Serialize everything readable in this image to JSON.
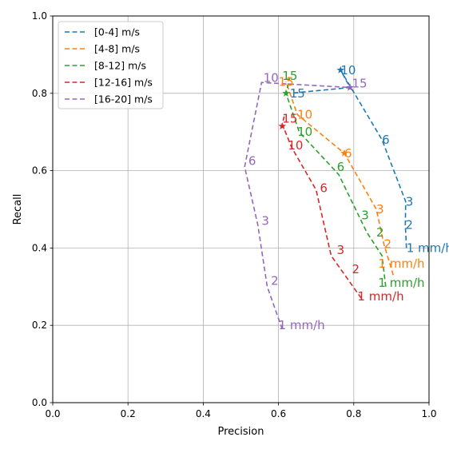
{
  "chart_data": {
    "type": "line",
    "xlabel": "Precision",
    "ylabel": "Recall",
    "xlim": [
      0.0,
      1.0
    ],
    "ylim": [
      0.0,
      1.0
    ],
    "xticks": [
      "0.0",
      "0.2",
      "0.4",
      "0.6",
      "0.8",
      "1.0"
    ],
    "yticks": [
      "0.0",
      "0.2",
      "0.4",
      "0.6",
      "0.8",
      "1.0"
    ],
    "grid": true,
    "legend_position": "top-left",
    "series": [
      {
        "name": "[0-4] m/s",
        "color": "#1f77b4",
        "x": [
          0.94,
          0.937,
          0.938,
          0.875,
          0.765,
          0.79,
          0.63
        ],
        "y": [
          0.4,
          0.46,
          0.52,
          0.68,
          0.86,
          0.815,
          0.8
        ],
        "labels": [
          {
            "text": "1 mm/h",
            "x": 0.94,
            "y": 0.4
          },
          {
            "text": "2",
            "x": 0.937,
            "y": 0.46
          },
          {
            "text": "3",
            "x": 0.938,
            "y": 0.52
          },
          {
            "text": "6",
            "x": 0.875,
            "y": 0.68
          },
          {
            "text": "10",
            "x": 0.765,
            "y": 0.86
          },
          {
            "text": "15",
            "x": 0.63,
            "y": 0.8
          }
        ],
        "markers": [
          {
            "x": 0.765,
            "y": 0.86
          },
          {
            "x": 0.79,
            "y": 0.815
          }
        ]
      },
      {
        "name": "[4-8] m/s",
        "color": "#ff7f0e",
        "x": [
          0.905,
          0.88,
          0.86,
          0.775,
          0.65,
          0.62
        ],
        "y": [
          0.33,
          0.41,
          0.5,
          0.645,
          0.745,
          0.83
        ],
        "labels": [
          {
            "text": "1 mm/h",
            "x": 0.865,
            "y": 0.36
          },
          {
            "text": "2",
            "x": 0.88,
            "y": 0.41
          },
          {
            "text": "3",
            "x": 0.86,
            "y": 0.5
          },
          {
            "text": "6",
            "x": 0.775,
            "y": 0.645
          },
          {
            "text": "10",
            "x": 0.65,
            "y": 0.745
          },
          {
            "text": "15",
            "x": 0.6,
            "y": 0.83
          }
        ],
        "markers": [
          {
            "x": 0.775,
            "y": 0.645
          }
        ]
      },
      {
        "name": "[8-12] m/s",
        "color": "#2ca02c",
        "x": [
          0.885,
          0.875,
          0.835,
          0.76,
          0.655,
          0.62,
          0.63
        ],
        "y": [
          0.3,
          0.38,
          0.44,
          0.59,
          0.7,
          0.8,
          0.84
        ],
        "labels": [
          {
            "text": "1 mm/h",
            "x": 0.865,
            "y": 0.31
          },
          {
            "text": "2",
            "x": 0.86,
            "y": 0.44
          },
          {
            "text": "3",
            "x": 0.82,
            "y": 0.485
          },
          {
            "text": "6",
            "x": 0.755,
            "y": 0.61
          },
          {
            "text": "10",
            "x": 0.65,
            "y": 0.7
          },
          {
            "text": "15",
            "x": 0.61,
            "y": 0.845
          }
        ],
        "markers": [
          {
            "x": 0.62,
            "y": 0.8
          }
        ]
      },
      {
        "name": "[12-16] m/s",
        "color": "#d62728",
        "x": [
          0.82,
          0.74,
          0.7,
          0.635,
          0.61,
          0.615
        ],
        "y": [
          0.27,
          0.38,
          0.55,
          0.66,
          0.72,
          0.74
        ],
        "labels": [
          {
            "text": "1 mm/h",
            "x": 0.81,
            "y": 0.275
          },
          {
            "text": "2",
            "x": 0.795,
            "y": 0.345
          },
          {
            "text": "3",
            "x": 0.755,
            "y": 0.395
          },
          {
            "text": "6",
            "x": 0.71,
            "y": 0.555
          },
          {
            "text": "10",
            "x": 0.625,
            "y": 0.665
          },
          {
            "text": "15",
            "x": 0.61,
            "y": 0.735
          }
        ],
        "markers": [
          {
            "x": 0.61,
            "y": 0.715
          }
        ]
      },
      {
        "name": "[16-20] m/s",
        "color": "#9467bd",
        "x": [
          0.61,
          0.57,
          0.545,
          0.51,
          0.555,
          0.79
        ],
        "y": [
          0.19,
          0.3,
          0.46,
          0.61,
          0.828,
          0.815
        ],
        "labels": [
          {
            "text": "1 mm/h",
            "x": 0.6,
            "y": 0.2
          },
          {
            "text": "2",
            "x": 0.58,
            "y": 0.315
          },
          {
            "text": "3",
            "x": 0.555,
            "y": 0.47
          },
          {
            "text": "6",
            "x": 0.52,
            "y": 0.625
          },
          {
            "text": "10",
            "x": 0.56,
            "y": 0.84
          },
          {
            "text": "15",
            "x": 0.795,
            "y": 0.825
          }
        ],
        "markers": [
          {
            "x": 0.79,
            "y": 0.815
          }
        ]
      }
    ]
  }
}
